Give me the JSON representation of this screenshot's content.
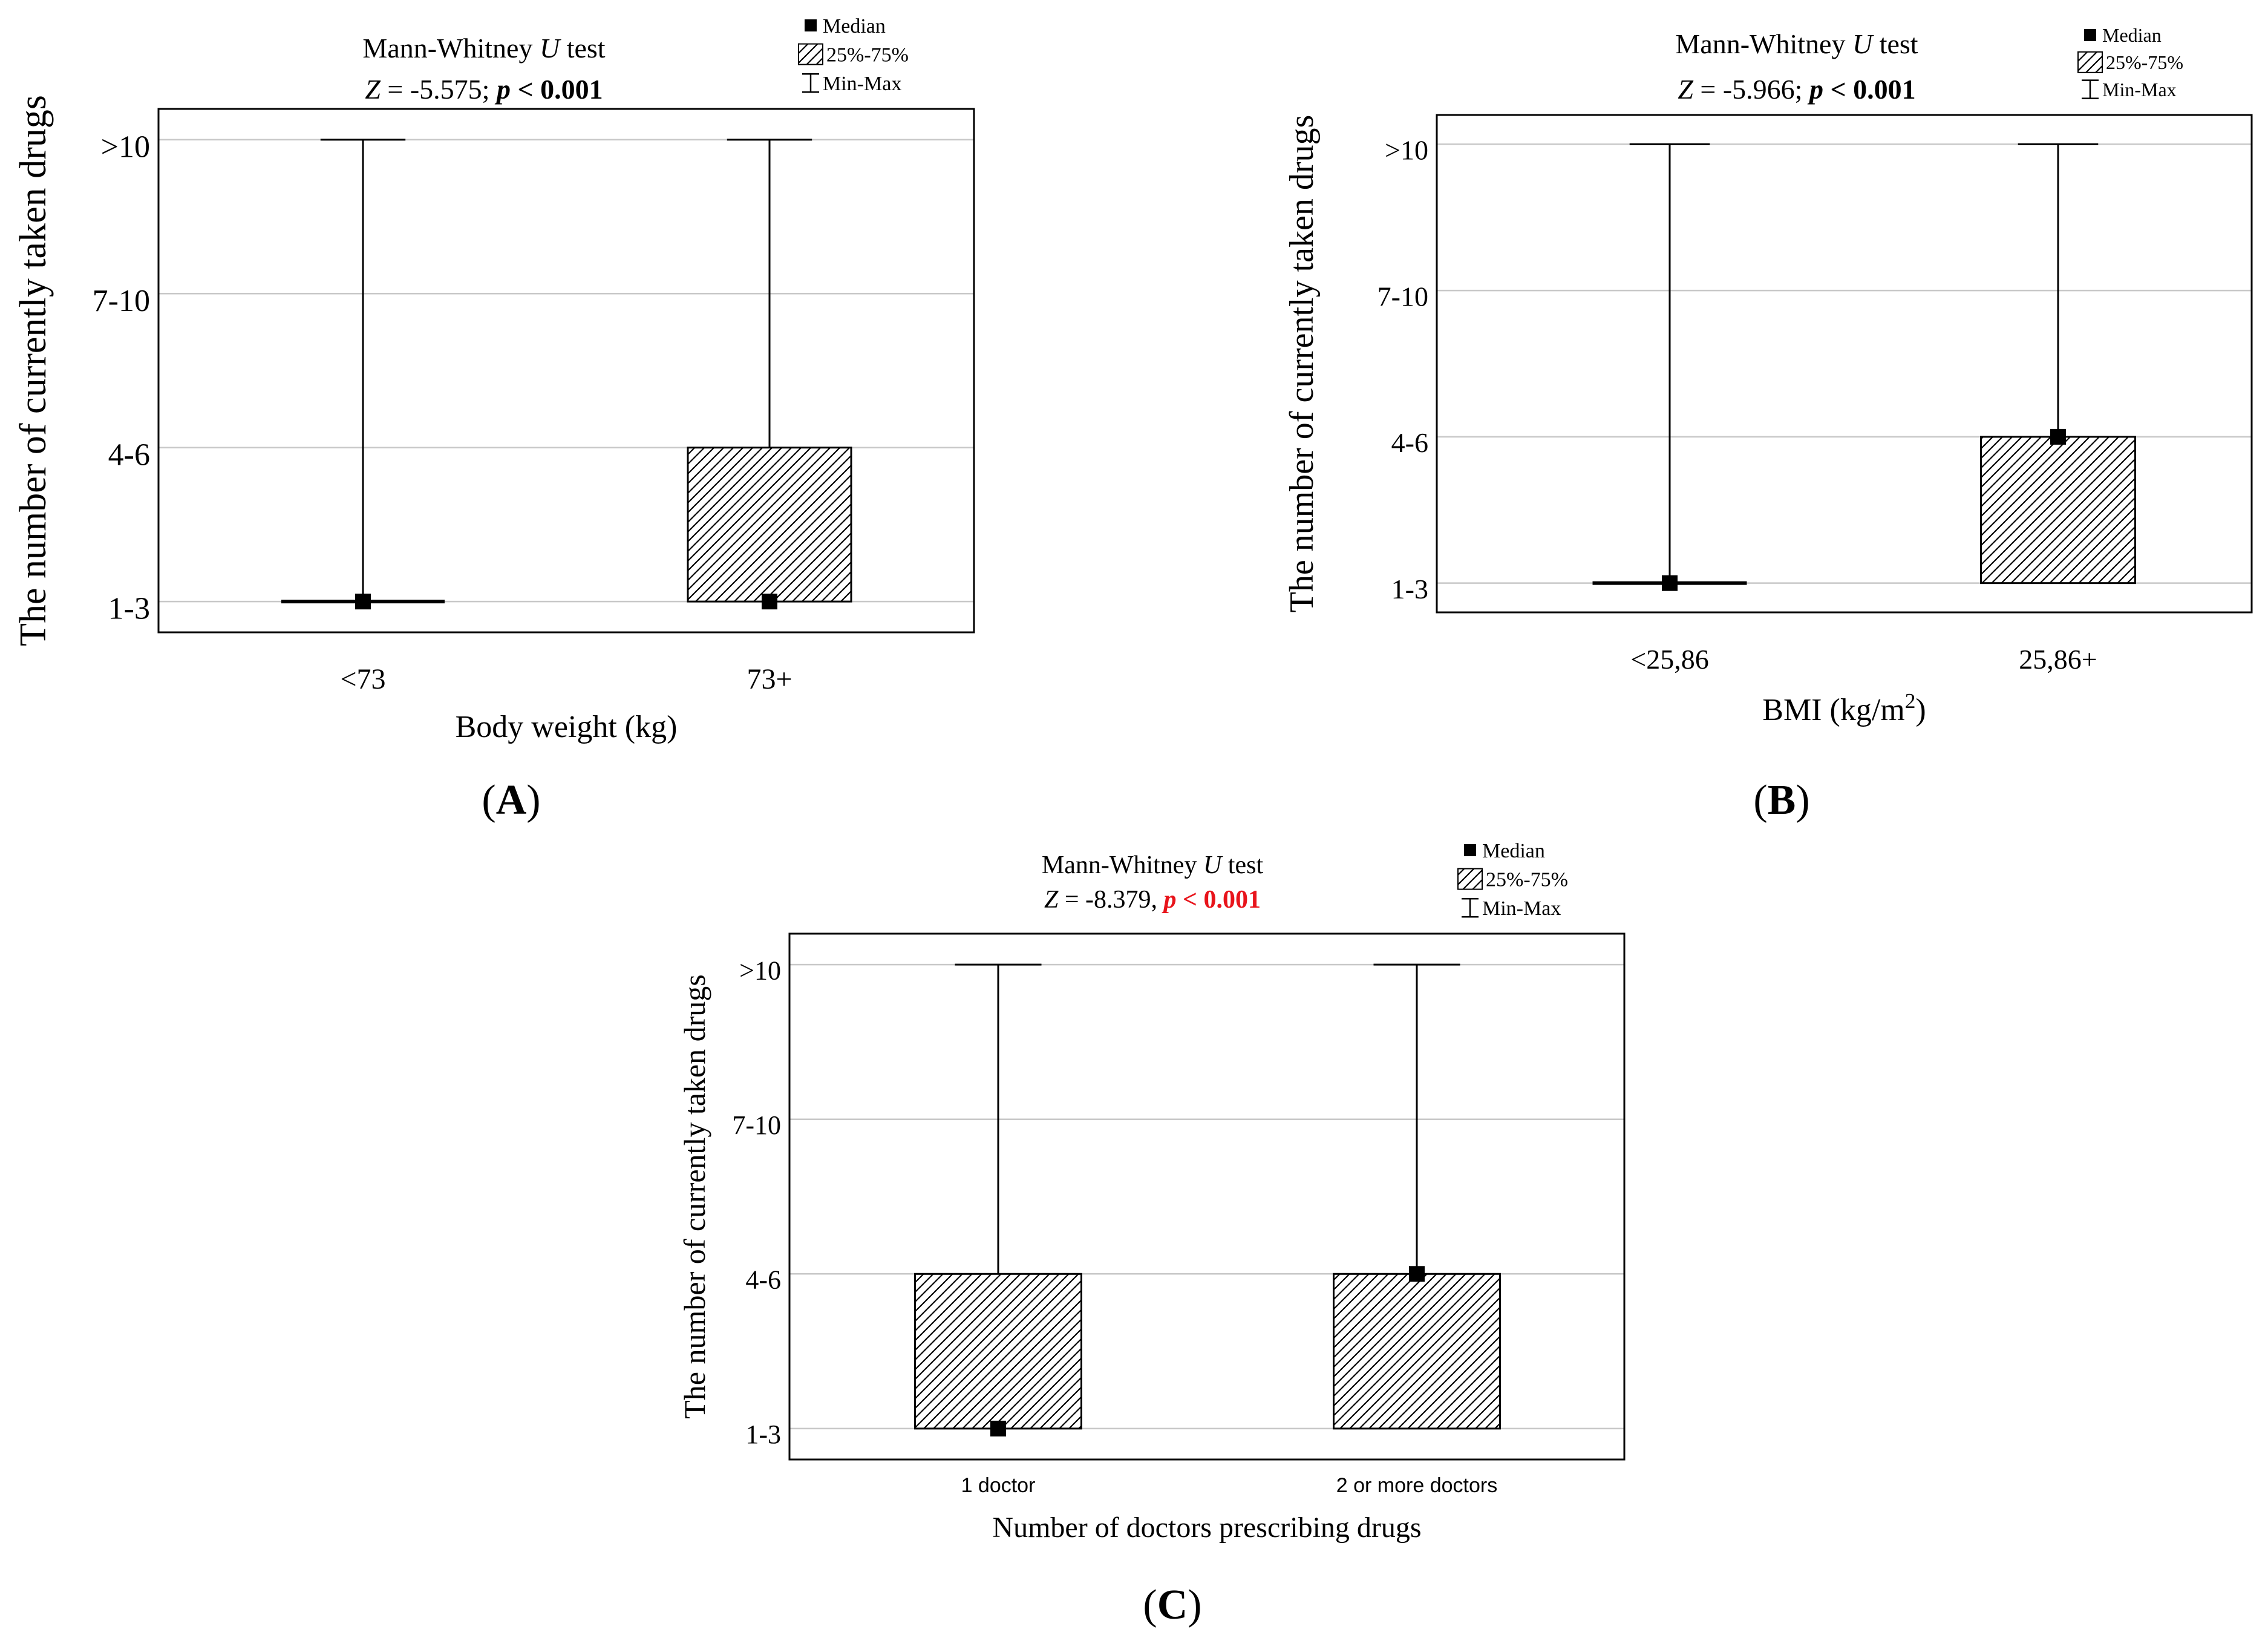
{
  "colors": {
    "highlight_p": "#e8141b",
    "grid": "#c8c8c8",
    "ink": "#000000"
  },
  "figure": {
    "panel_labels": [
      "(A)",
      "(B)",
      "(C)"
    ]
  },
  "chart_data": [
    {
      "id": "A",
      "type": "boxplot",
      "test_line": "Mann-Whitney U test",
      "stat_z": "Z = -5.575;",
      "stat_p": "p < 0.001",
      "ylabel": "The number of currently taken drugs",
      "xlabel": "Body weight (kg)",
      "categories": [
        "<73",
        "73+"
      ],
      "y_ticks": [
        "1-3",
        "4-6",
        "7-10",
        ">10"
      ],
      "ylim": [
        0.8,
        4.2
      ],
      "legend": {
        "median": "Median",
        "iqr": "25%-75%",
        "range": "Min-Max",
        "placement": "top-right"
      },
      "series": [
        {
          "category": "<73",
          "median": 1,
          "q1": 1,
          "q3": 1,
          "min": 1,
          "max": 4
        },
        {
          "category": "73+",
          "median": 1,
          "q1": 1,
          "q3": 2,
          "min": 1,
          "max": 4
        }
      ]
    },
    {
      "id": "B",
      "type": "boxplot",
      "test_line": "Mann-Whitney U test",
      "stat_z": "Z = -5.966;",
      "stat_p": "p < 0.001",
      "ylabel": "The number of currently taken drugs",
      "xlabel": "BMI (kg/m2)",
      "categories": [
        "<25,86",
        "25,86+"
      ],
      "y_ticks": [
        "1-3",
        "4-6",
        "7-10",
        ">10"
      ],
      "ylim": [
        0.8,
        4.2
      ],
      "legend": {
        "median": "Median",
        "iqr": "25%-75%",
        "range": "Min-Max",
        "placement": "top-right"
      },
      "series": [
        {
          "category": "<25,86",
          "median": 1,
          "q1": 1,
          "q3": 1,
          "min": 1,
          "max": 4
        },
        {
          "category": "25,86+",
          "median": 2,
          "q1": 1,
          "q3": 2,
          "min": 1,
          "max": 4
        }
      ]
    },
    {
      "id": "C",
      "type": "boxplot",
      "test_line": "Mann-Whitney U test",
      "stat_z": "Z = -8.379,",
      "stat_p": "p < 0.001",
      "ylabel": "The number of currently taken drugs",
      "xlabel": "Number of doctors prescribing drugs",
      "categories": [
        "1 doctor",
        "2 or more doctors"
      ],
      "y_ticks": [
        "1-3",
        "4-6",
        "7-10",
        ">10"
      ],
      "ylim": [
        0.8,
        4.2
      ],
      "legend": {
        "median": "Median",
        "iqr": "25%-75%",
        "range": "Min-Max",
        "placement": "top-right"
      },
      "series": [
        {
          "category": "1 doctor",
          "median": 1,
          "q1": 1,
          "q3": 2,
          "min": 1,
          "max": 4
        },
        {
          "category": "2 or more doctors",
          "median": 2,
          "q1": 1,
          "q3": 2,
          "min": 1,
          "max": 4
        }
      ]
    }
  ]
}
